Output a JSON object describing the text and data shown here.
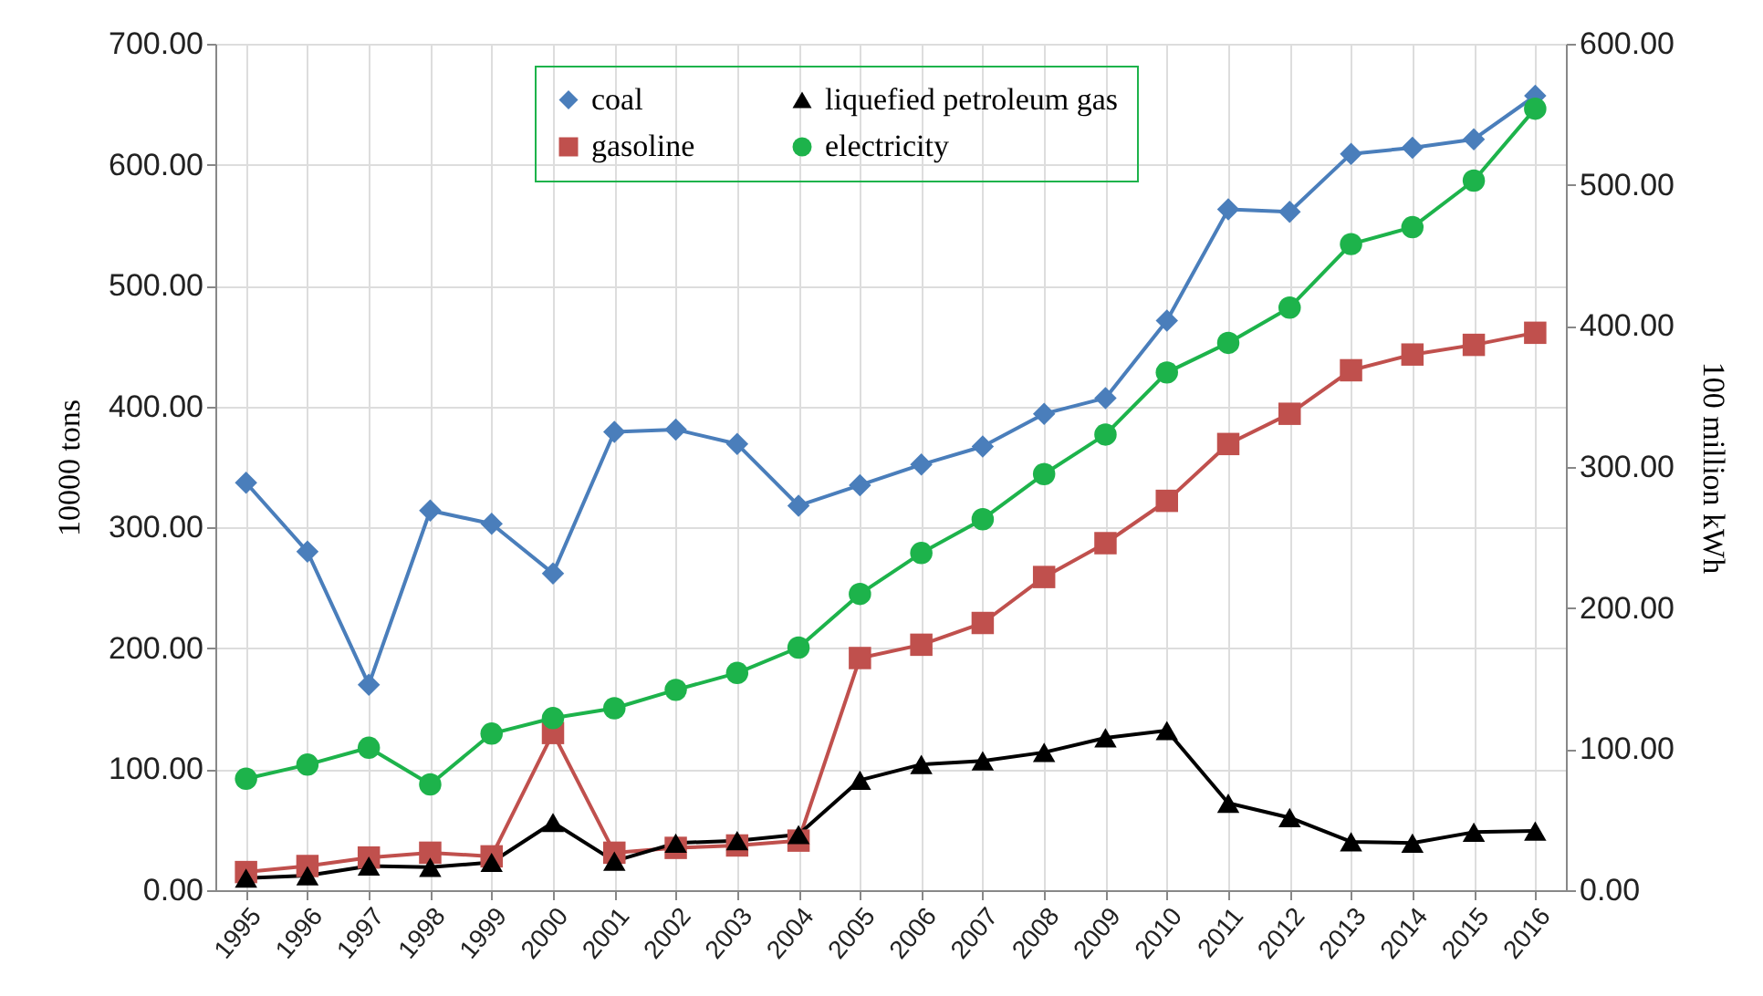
{
  "chart_data": {
    "type": "line",
    "xlabel": null,
    "ylabel": "10000 tons",
    "y2label": "100 million kWh",
    "categories": [
      "1995",
      "1996",
      "1997",
      "1998",
      "1999",
      "2000",
      "2001",
      "2002",
      "2003",
      "2004",
      "2005",
      "2006",
      "2007",
      "2008",
      "2009",
      "2010",
      "2011",
      "2012",
      "2013",
      "2014",
      "2015",
      "2016"
    ],
    "series": [
      {
        "name": "coal",
        "color": "#4a7ebb",
        "marker": "diamond",
        "values": [
          337,
          280,
          170,
          314,
          303,
          262,
          379,
          381,
          369,
          318,
          335,
          352,
          367,
          394,
          407,
          471,
          563,
          561,
          609,
          614,
          621,
          657
        ]
      },
      {
        "name": "gasoline",
        "color": "#c0504d",
        "marker": "square",
        "values": [
          15,
          20,
          27,
          31,
          28,
          130,
          31,
          35,
          37,
          41,
          192,
          203,
          221,
          259,
          287,
          322,
          369,
          394,
          430,
          443,
          451,
          461
        ]
      },
      {
        "name": "liquefied petroleum gas",
        "color": "#000000",
        "marker": "triangle",
        "values": [
          10,
          12,
          20,
          19,
          23,
          56,
          24,
          39,
          41,
          46,
          91,
          104,
          107,
          114,
          126,
          132,
          72,
          60,
          40,
          39,
          48,
          49
        ]
      },
      {
        "name": "electricity",
        "color": "#1db34b",
        "marker": "circle",
        "axis": "y2",
        "values": [
          79,
          89,
          101,
          75,
          111,
          122,
          129,
          142,
          154,
          172,
          210,
          239,
          263,
          295,
          323,
          367,
          388,
          413,
          458,
          470,
          503,
          554
        ]
      }
    ],
    "ylim": [
      0,
      700
    ],
    "yticks": [
      {
        "value": 0,
        "label": "0.00"
      },
      {
        "value": 100,
        "label": "100.00"
      },
      {
        "value": 200,
        "label": "200.00"
      },
      {
        "value": 300,
        "label": "300.00"
      },
      {
        "value": 400,
        "label": "400.00"
      },
      {
        "value": 500,
        "label": "500.00"
      },
      {
        "value": 600,
        "label": "600.00"
      },
      {
        "value": 700,
        "label": "700.00"
      }
    ],
    "y2lim": [
      0,
      600
    ],
    "y2ticks": [
      {
        "value": 0,
        "label": "0.00"
      },
      {
        "value": 100,
        "label": "100.00"
      },
      {
        "value": 200,
        "label": "200.00"
      },
      {
        "value": 300,
        "label": "300.00"
      },
      {
        "value": 400,
        "label": "400.00"
      },
      {
        "value": 500,
        "label": "500.00"
      },
      {
        "value": 600,
        "label": "600.00"
      }
    ],
    "grid": true,
    "legend": "top",
    "line_style": "solid"
  }
}
